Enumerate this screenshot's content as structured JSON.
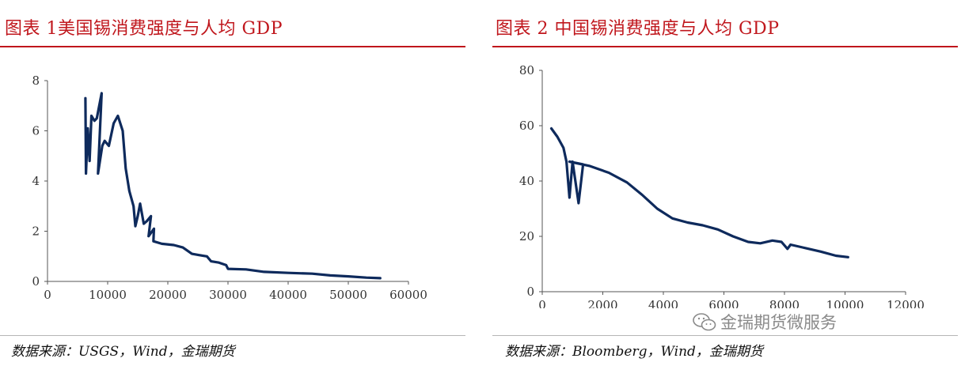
{
  "panels": [
    {
      "title": "图表 1美国锡消费强度与人均 GDP",
      "source": "数据来源：USGS，Wind，金瑞期货"
    },
    {
      "title": "图表 2 中国锡消费强度与人均 GDP",
      "source": "数据来源：Bloomberg，Wind，金瑞期货"
    }
  ],
  "watermark": {
    "text": "金瑞期货微服务",
    "icon": "wechat-icon"
  },
  "colors": {
    "accent": "#c0161c",
    "series": "#0e2a5c",
    "axis": "#555555"
  },
  "chart_data": [
    {
      "type": "line",
      "title": "",
      "xlabel": "",
      "ylabel": "",
      "xlim": [
        0,
        60000
      ],
      "ylim": [
        0,
        8
      ],
      "xticks": [
        "0",
        "10000",
        "20000",
        "30000",
        "40000",
        "50000",
        "60000"
      ],
      "yticks": [
        "0",
        "2",
        "4",
        "6",
        "8"
      ],
      "grid": false,
      "series": [
        {
          "values": [
            [
              6300,
              7.3
            ],
            [
              6400,
              4.3
            ],
            [
              6700,
              6.1
            ],
            [
              7000,
              4.8
            ],
            [
              7300,
              6.6
            ],
            [
              7800,
              6.4
            ],
            [
              8200,
              6.5
            ],
            [
              9000,
              7.5
            ],
            [
              8400,
              4.3
            ],
            [
              9100,
              5.4
            ],
            [
              9500,
              5.6
            ],
            [
              10200,
              5.4
            ],
            [
              11000,
              6.3
            ],
            [
              11700,
              6.6
            ],
            [
              12500,
              6.0
            ],
            [
              13000,
              4.5
            ],
            [
              13600,
              3.6
            ],
            [
              14300,
              3.0
            ],
            [
              14600,
              2.2
            ],
            [
              15000,
              2.6
            ],
            [
              15400,
              3.1
            ],
            [
              16000,
              2.3
            ],
            [
              16500,
              2.4
            ],
            [
              17200,
              2.6
            ],
            [
              16800,
              1.8
            ],
            [
              17700,
              2.1
            ],
            [
              17600,
              1.6
            ],
            [
              19000,
              1.5
            ],
            [
              21000,
              1.45
            ],
            [
              22500,
              1.35
            ],
            [
              24000,
              1.1
            ],
            [
              25200,
              1.05
            ],
            [
              26500,
              1.0
            ],
            [
              27200,
              0.8
            ],
            [
              28500,
              0.75
            ],
            [
              29700,
              0.65
            ],
            [
              30000,
              0.5
            ],
            [
              33000,
              0.48
            ],
            [
              36000,
              0.38
            ],
            [
              40000,
              0.34
            ],
            [
              44000,
              0.31
            ],
            [
              47000,
              0.24
            ],
            [
              50000,
              0.2
            ],
            [
              53000,
              0.15
            ],
            [
              55300,
              0.13
            ]
          ]
        }
      ]
    },
    {
      "type": "line",
      "title": "",
      "xlabel": "",
      "ylabel": "",
      "xlim": [
        0,
        12000
      ],
      "ylim": [
        0,
        80
      ],
      "xticks": [
        "0",
        "2000",
        "4000",
        "6000",
        "8000",
        "10000",
        "12000"
      ],
      "yticks": [
        "0",
        "20",
        "40",
        "60",
        "80"
      ],
      "grid": false,
      "series": [
        {
          "values": [
            [
              300,
              59
            ],
            [
              500,
              56
            ],
            [
              700,
              52
            ],
            [
              800,
              47
            ],
            [
              900,
              34
            ],
            [
              1000,
              47
            ],
            [
              1200,
              32
            ],
            [
              1350,
              46
            ],
            [
              900,
              47
            ],
            [
              1550,
              45.5
            ],
            [
              2200,
              43
            ],
            [
              2800,
              39.5
            ],
            [
              3300,
              35
            ],
            [
              3800,
              30
            ],
            [
              4300,
              26.5
            ],
            [
              4800,
              25
            ],
            [
              5300,
              24
            ],
            [
              5800,
              22.5
            ],
            [
              6300,
              20
            ],
            [
              6800,
              18
            ],
            [
              7200,
              17.5
            ],
            [
              7600,
              18.5
            ],
            [
              7900,
              18
            ],
            [
              8100,
              15.5
            ],
            [
              8200,
              17
            ],
            [
              8600,
              16
            ],
            [
              9200,
              14.5
            ],
            [
              9700,
              13
            ],
            [
              10100,
              12.5
            ]
          ]
        }
      ]
    }
  ]
}
